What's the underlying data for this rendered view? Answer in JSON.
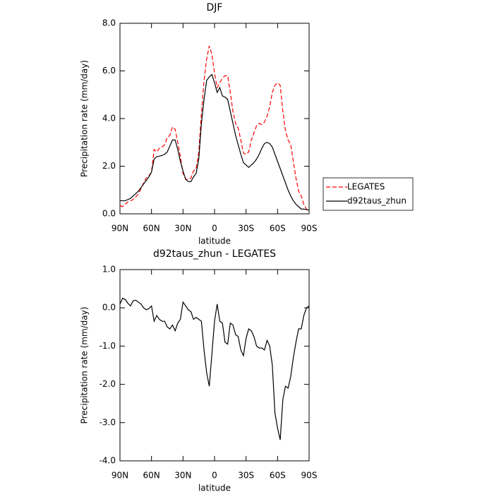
{
  "chart_data": [
    {
      "type": "line",
      "title": "DJF",
      "x_label": "latitude",
      "y_label": "Precipitation rate (mm/day)",
      "x": [
        90,
        87.5,
        85,
        82.5,
        80,
        77.5,
        75,
        72.5,
        70,
        67.5,
        65,
        62.5,
        60,
        57.5,
        55,
        52.5,
        50,
        47.5,
        45,
        42.5,
        40,
        37.5,
        35,
        32.5,
        30,
        27.5,
        25,
        22.5,
        20,
        17.5,
        15,
        12.5,
        10,
        7.5,
        5,
        2.5,
        0,
        -2.5,
        -5,
        -7.5,
        -10,
        -12.5,
        -15,
        -17.5,
        -20,
        -22.5,
        -25,
        -27.5,
        -30,
        -32.5,
        -35,
        -37.5,
        -40,
        -42.5,
        -45,
        -47.5,
        -50,
        -52.5,
        -55,
        -57.5,
        -60,
        -62.5,
        -65,
        -67.5,
        -70,
        -72.5,
        -75,
        -77.5,
        -80,
        -82.5,
        -85,
        -87.5,
        -90
      ],
      "xlim": [
        90,
        -90
      ],
      "xticks": [
        {
          "value": 90,
          "label": "90N"
        },
        {
          "value": 60,
          "label": "60N"
        },
        {
          "value": 30,
          "label": "30N"
        },
        0,
        {
          "value": -30,
          "label": "30S"
        },
        {
          "value": -60,
          "label": "60S"
        },
        {
          "value": -90,
          "label": "90S"
        }
      ],
      "ylim": [
        0,
        8
      ],
      "yticks": [
        {
          "value": 0,
          "label": "0.0"
        },
        {
          "value": 2,
          "label": "2.0"
        },
        {
          "value": 4,
          "label": "4.0"
        },
        {
          "value": 6,
          "label": "6.0"
        },
        {
          "value": 8,
          "label": "8.0"
        }
      ],
      "legend": "right",
      "series": [
        {
          "name": "LEGATES",
          "color": "#ff0000",
          "line_style": "dashed",
          "values": [
            0.35,
            0.3,
            0.4,
            0.5,
            0.55,
            0.6,
            0.7,
            0.85,
            1.05,
            1.3,
            1.5,
            1.6,
            1.75,
            2.7,
            2.6,
            2.75,
            2.8,
            2.9,
            3.2,
            3.3,
            3.65,
            3.55,
            3.0,
            2.4,
            1.7,
            1.45,
            1.45,
            1.5,
            1.8,
            1.9,
            2.6,
            4.2,
            5.6,
            6.5,
            7.05,
            6.7,
            5.9,
            5.3,
            5.5,
            5.7,
            5.8,
            5.8,
            5.1,
            4.3,
            3.8,
            3.6,
            3.1,
            2.55,
            2.5,
            2.6,
            3.1,
            3.4,
            3.7,
            3.8,
            3.75,
            3.85,
            4.1,
            4.5,
            5.1,
            5.4,
            5.5,
            5.4,
            4.3,
            3.5,
            3.1,
            2.9,
            2.2,
            1.5,
            0.95,
            0.75,
            0.4,
            0.2,
            0.1
          ]
        },
        {
          "name": "d92taus_zhun",
          "color": "#000000",
          "line_style": "solid",
          "values": [
            0.55,
            0.55,
            0.55,
            0.6,
            0.65,
            0.75,
            0.85,
            0.95,
            1.1,
            1.25,
            1.4,
            1.55,
            1.75,
            2.3,
            2.4,
            2.42,
            2.45,
            2.5,
            2.6,
            2.85,
            3.1,
            3.1,
            2.7,
            2.2,
            1.8,
            1.45,
            1.35,
            1.35,
            1.55,
            1.7,
            2.3,
            3.8,
            4.8,
            5.6,
            5.75,
            5.85,
            5.5,
            5.1,
            5.3,
            4.95,
            4.9,
            4.8,
            4.3,
            3.8,
            3.3,
            2.9,
            2.5,
            2.15,
            2.05,
            1.95,
            2.05,
            2.15,
            2.3,
            2.5,
            2.75,
            2.95,
            3.0,
            2.95,
            2.8,
            2.5,
            2.2,
            1.9,
            1.6,
            1.3,
            1.0,
            0.75,
            0.55,
            0.4,
            0.3,
            0.2,
            0.2,
            0.18,
            0.15
          ]
        }
      ]
    },
    {
      "type": "line",
      "title": "d92taus_zhun - LEGATES",
      "x_label": "latitude",
      "y_label": "Precipitation rate (mm/day)",
      "x": [
        90,
        87.5,
        85,
        82.5,
        80,
        77.5,
        75,
        72.5,
        70,
        67.5,
        65,
        62.5,
        60,
        57.5,
        55,
        52.5,
        50,
        47.5,
        45,
        42.5,
        40,
        37.5,
        35,
        32.5,
        30,
        27.5,
        25,
        22.5,
        20,
        17.5,
        15,
        12.5,
        10,
        7.5,
        5,
        2.5,
        0,
        -2.5,
        -5,
        -7.5,
        -10,
        -12.5,
        -15,
        -17.5,
        -20,
        -22.5,
        -25,
        -27.5,
        -30,
        -32.5,
        -35,
        -37.5,
        -40,
        -42.5,
        -45,
        -47.5,
        -50,
        -52.5,
        -55,
        -57.5,
        -60,
        -62.5,
        -65,
        -67.5,
        -70,
        -72.5,
        -75,
        -77.5,
        -80,
        -82.5,
        -85,
        -87.5,
        -90
      ],
      "xlim": [
        90,
        -90
      ],
      "xticks": [
        {
          "value": 90,
          "label": "90N"
        },
        {
          "value": 60,
          "label": "60N"
        },
        {
          "value": 30,
          "label": "30N"
        },
        0,
        {
          "value": -30,
          "label": "30S"
        },
        {
          "value": -60,
          "label": "60S"
        },
        {
          "value": -90,
          "label": "90S"
        }
      ],
      "ylim": [
        -4,
        1
      ],
      "yticks": [
        {
          "value": -4,
          "label": "-4.0"
        },
        {
          "value": -3,
          "label": "-3.0"
        },
        {
          "value": -2,
          "label": "-2.0"
        },
        {
          "value": -1,
          "label": "-1.0"
        },
        {
          "value": 0,
          "label": "0.0"
        },
        {
          "value": 1,
          "label": "1.0"
        }
      ],
      "color": "#000000",
      "values": [
        0.1,
        0.25,
        0.22,
        0.12,
        0.05,
        0.18,
        0.2,
        0.15,
        0.1,
        0.0,
        -0.05,
        -0.02,
        0.05,
        -0.35,
        -0.2,
        -0.3,
        -0.35,
        -0.35,
        -0.5,
        -0.55,
        -0.45,
        -0.6,
        -0.4,
        -0.3,
        0.15,
        0.05,
        -0.05,
        -0.1,
        -0.3,
        -0.25,
        -0.3,
        -0.35,
        -1.1,
        -1.7,
        -2.05,
        -1.2,
        -0.35,
        0.1,
        -0.35,
        -0.4,
        -0.9,
        -0.95,
        -0.4,
        -0.45,
        -0.7,
        -0.75,
        -1.1,
        -1.25,
        -0.8,
        -0.55,
        -0.6,
        -0.75,
        -1.0,
        -1.05,
        -1.05,
        -1.1,
        -0.85,
        -1.0,
        -1.5,
        -2.75,
        -3.15,
        -3.45,
        -2.4,
        -2.05,
        -2.1,
        -1.8,
        -1.3,
        -0.9,
        -0.55,
        -0.55,
        -0.2,
        0.0,
        0.05
      ]
    }
  ]
}
